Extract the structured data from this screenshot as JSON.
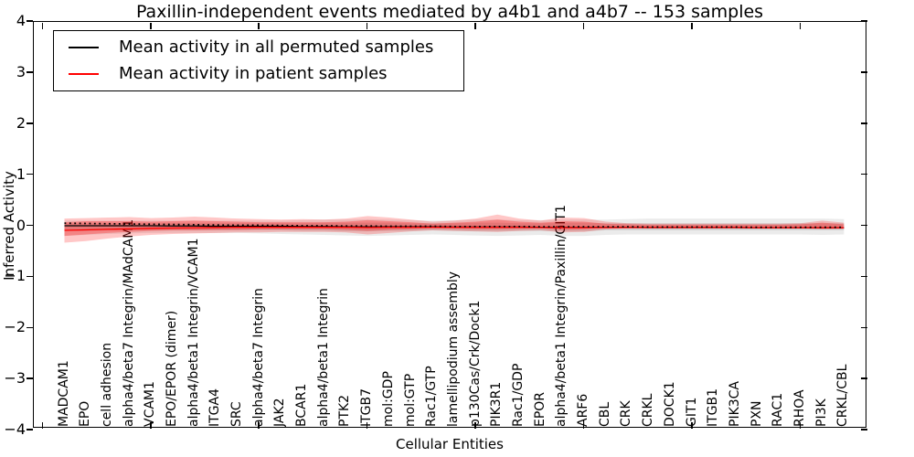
{
  "chart_data": {
    "type": "line",
    "title": "Paxillin-independent events mediated by a4b1 and a4b7 -- 153 samples",
    "xlabel": "Cellular Entities",
    "ylabel": "Inferred Activity",
    "ylim": [
      -4,
      4
    ],
    "grid": false,
    "legend_position": "upper left",
    "yticks": {
      "values": [
        4,
        3,
        2,
        1,
        0,
        -1,
        -2,
        -3,
        -4
      ],
      "labels": [
        "4",
        "3",
        "2",
        "1",
        "0",
        "−1",
        "−2",
        "−3",
        "−4"
      ]
    },
    "categories": [
      "MADCAM1",
      "EPO",
      "cell adhesion",
      "alpha4/beta7 Integrin/MAdCAM1",
      "VCAM1",
      "EPO/EPOR (dimer)",
      "alpha4/beta1 Integrin/VCAM1",
      "ITGA4",
      "SRC",
      "alpha4/beta7 Integrin",
      "JAK2",
      "BCAR1",
      "alpha4/beta1 Integrin",
      "PTK2",
      "ITGB7",
      "mol:GDP",
      "mol:GTP",
      "Rac1/GTP",
      "lamellipodium assembly",
      "p130Cas/Crk/Dock1",
      "PIK3R1",
      "Rac1/GDP",
      "EPOR",
      "alpha4/beta1 Integrin/Paxillin/GIT1",
      "ARF6",
      "CBL",
      "CRK",
      "CRKL",
      "DOCK1",
      "GIT1",
      "ITGB1",
      "PIK3CA",
      "PXN",
      "RAC1",
      "RHOA",
      "PI3K",
      "CRKL/CBL"
    ],
    "legend": [
      {
        "label": "Mean activity in all permuted samples",
        "color": "#000000",
        "style": "solid"
      },
      {
        "label": "Mean activity in patient samples",
        "color": "#ff0000",
        "style": "solid"
      }
    ],
    "series": [
      {
        "id": "permuted-mean",
        "name": "Mean activity in all permuted samples",
        "color": "#000000",
        "style": "solid",
        "values": [
          0,
          0,
          0,
          0,
          0,
          -0.005,
          -0.005,
          -0.01,
          -0.01,
          -0.01,
          -0.01,
          -0.015,
          -0.015,
          -0.02,
          -0.02,
          -0.02,
          -0.02,
          -0.02,
          -0.025,
          -0.025,
          -0.025,
          -0.025,
          -0.03,
          -0.03,
          -0.03,
          -0.03,
          -0.03,
          -0.035,
          -0.035,
          -0.035,
          -0.035,
          -0.035,
          -0.04,
          -0.04,
          -0.04,
          -0.04,
          -0.04
        ]
      },
      {
        "id": "permuted-upper-dotted",
        "name": "",
        "color": "#000000",
        "style": "dotted",
        "values": [
          0.05,
          0.045,
          0.04,
          0.035,
          0.03,
          0.025,
          0.02,
          0.015,
          0.01,
          0.01,
          0.005,
          0,
          0,
          -0.005,
          -0.005,
          -0.01,
          -0.01,
          -0.01,
          -0.015,
          -0.015,
          -0.015,
          -0.015,
          -0.02,
          -0.02,
          -0.02,
          -0.02,
          -0.02,
          -0.025,
          -0.025,
          -0.025,
          -0.025,
          -0.025,
          -0.03,
          -0.03,
          -0.03,
          -0.03,
          -0.03
        ]
      },
      {
        "id": "patient-mean",
        "name": "Mean activity in patient samples",
        "color": "#ff0000",
        "style": "solid",
        "values": [
          -0.09,
          -0.08,
          -0.07,
          -0.06,
          -0.05,
          -0.045,
          -0.04,
          -0.035,
          -0.03,
          -0.03,
          -0.03,
          -0.03,
          -0.03,
          -0.03,
          -0.035,
          -0.03,
          -0.03,
          -0.03,
          -0.03,
          -0.03,
          -0.03,
          -0.03,
          -0.035,
          -0.035,
          -0.035,
          -0.035,
          -0.035,
          -0.035,
          -0.035,
          -0.035,
          -0.035,
          -0.035,
          -0.04,
          -0.04,
          -0.04,
          -0.04,
          -0.04
        ]
      }
    ],
    "bands": [
      {
        "id": "permuted-outer-band",
        "color": "rgba(0,0,0,0.08)",
        "upper": [
          0.1,
          0.1,
          0.1,
          0.1,
          0.1,
          0.1,
          0.1,
          0.1,
          0.1,
          0.1,
          0.1,
          0.11,
          0.12,
          0.12,
          0.13,
          0.12,
          0.11,
          0.1,
          0.11,
          0.12,
          0.12,
          0.11,
          0.11,
          0.12,
          0.12,
          0.12,
          0.13,
          0.14,
          0.14,
          0.14,
          0.14,
          0.14,
          0.14,
          0.14,
          0.14,
          0.14,
          0.13
        ],
        "lower": [
          -0.2,
          -0.18,
          -0.16,
          -0.15,
          -0.14,
          -0.14,
          -0.14,
          -0.14,
          -0.14,
          -0.15,
          -0.16,
          -0.17,
          -0.18,
          -0.19,
          -0.2,
          -0.19,
          -0.18,
          -0.17,
          -0.18,
          -0.19,
          -0.2,
          -0.19,
          -0.18,
          -0.2,
          -0.2,
          -0.18,
          -0.17,
          -0.17,
          -0.17,
          -0.17,
          -0.17,
          -0.17,
          -0.17,
          -0.17,
          -0.17,
          -0.18,
          -0.17
        ]
      },
      {
        "id": "permuted-inner-band",
        "color": "rgba(0,0,0,0.10)",
        "upper": [
          0.05,
          0.05,
          0.05,
          0.05,
          0.05,
          0.05,
          0.05,
          0.05,
          0.05,
          0.05,
          0.05,
          0.05,
          0.06,
          0.06,
          0.06,
          0.06,
          0.05,
          0.05,
          0.05,
          0.06,
          0.06,
          0.05,
          0.05,
          0.06,
          0.06,
          0.05,
          0.05,
          0.05,
          0.05,
          0.05,
          0.05,
          0.05,
          0.05,
          0.05,
          0.05,
          0.05,
          0.05
        ],
        "lower": [
          -0.1,
          -0.1,
          -0.09,
          -0.09,
          -0.09,
          -0.09,
          -0.09,
          -0.09,
          -0.09,
          -0.09,
          -0.09,
          -0.1,
          -0.1,
          -0.11,
          -0.11,
          -0.1,
          -0.1,
          -0.09,
          -0.1,
          -0.11,
          -0.11,
          -0.1,
          -0.1,
          -0.11,
          -0.11,
          -0.09,
          -0.09,
          -0.09,
          -0.09,
          -0.09,
          -0.09,
          -0.09,
          -0.09,
          -0.09,
          -0.09,
          -0.09,
          -0.09
        ]
      },
      {
        "id": "patient-outer-band",
        "color": "rgba(255,0,0,0.22)",
        "upper": [
          0.14,
          0.15,
          0.16,
          0.17,
          0.15,
          0.16,
          0.18,
          0.16,
          0.14,
          0.13,
          0.12,
          0.13,
          0.12,
          0.14,
          0.19,
          0.16,
          0.12,
          0.08,
          0.1,
          0.14,
          0.22,
          0.14,
          0.1,
          0.16,
          0.15,
          0.08,
          0.05,
          0.04,
          0.04,
          0.04,
          0.04,
          0.04,
          0.04,
          0.04,
          0.05,
          0.1,
          0.06
        ],
        "lower": [
          -0.33,
          -0.3,
          -0.25,
          -0.21,
          -0.18,
          -0.16,
          -0.15,
          -0.14,
          -0.13,
          -0.13,
          -0.12,
          -0.12,
          -0.12,
          -0.13,
          -0.17,
          -0.14,
          -0.11,
          -0.09,
          -0.1,
          -0.11,
          -0.12,
          -0.1,
          -0.09,
          -0.13,
          -0.12,
          -0.07,
          -0.05,
          -0.05,
          -0.05,
          -0.05,
          -0.05,
          -0.05,
          -0.05,
          -0.05,
          -0.05,
          -0.07,
          -0.06
        ]
      },
      {
        "id": "patient-inner-band",
        "color": "rgba(255,0,0,0.28)",
        "upper": [
          0.07,
          0.09,
          0.09,
          0.09,
          0.08,
          0.09,
          0.1,
          0.09,
          0.08,
          0.07,
          0.07,
          0.07,
          0.07,
          0.08,
          0.11,
          0.09,
          0.07,
          0.04,
          0.06,
          0.08,
          0.12,
          0.08,
          0.06,
          0.09,
          0.08,
          0.04,
          0.03,
          0.02,
          0.02,
          0.02,
          0.02,
          0.02,
          0.02,
          0.02,
          0.03,
          0.06,
          0.03
        ],
        "lower": [
          -0.2,
          -0.17,
          -0.14,
          -0.12,
          -0.1,
          -0.09,
          -0.09,
          -0.08,
          -0.08,
          -0.07,
          -0.07,
          -0.07,
          -0.07,
          -0.08,
          -0.1,
          -0.08,
          -0.07,
          -0.05,
          -0.06,
          -0.07,
          -0.07,
          -0.06,
          -0.05,
          -0.08,
          -0.07,
          -0.04,
          -0.03,
          -0.03,
          -0.03,
          -0.03,
          -0.03,
          -0.03,
          -0.03,
          -0.03,
          -0.03,
          -0.04,
          -0.03
        ]
      }
    ]
  }
}
